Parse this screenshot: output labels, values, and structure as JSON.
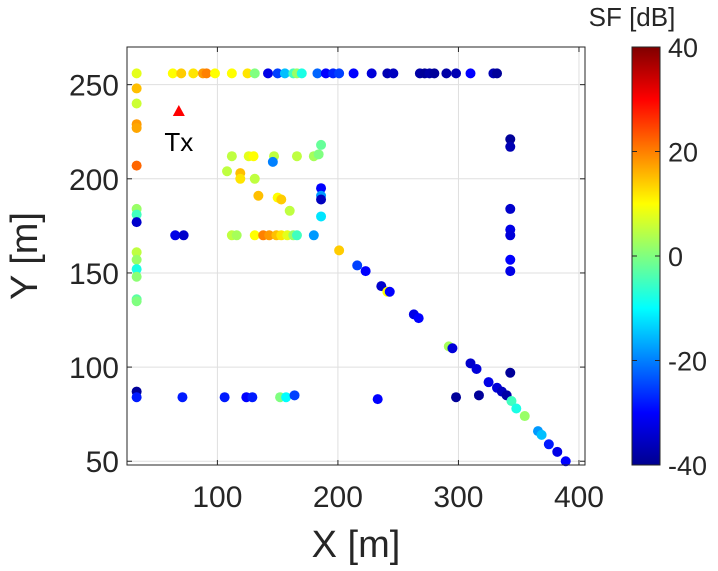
{
  "chart_data": {
    "type": "scatter",
    "title": "",
    "xlabel": "X [m]",
    "ylabel": "Y [m]",
    "xlim": [
      25,
      405
    ],
    "ylim": [
      48,
      270
    ],
    "xticks": [
      100,
      200,
      300,
      400
    ],
    "yticks": [
      50,
      100,
      150,
      200,
      250
    ],
    "grid": true,
    "colorbar": {
      "label": "SF [dB]",
      "colormap": "jet",
      "range": [
        -40,
        40
      ],
      "ticks": [
        -40,
        -20,
        0,
        20,
        40
      ]
    },
    "annotations": [
      {
        "text": "Tx",
        "x": 68,
        "y": 236,
        "marker": "triangle",
        "color": "#ff0000"
      }
    ],
    "points": [
      {
        "x": 33,
        "y": 256,
        "sf": 8
      },
      {
        "x": 33,
        "y": 248,
        "sf": 15
      },
      {
        "x": 33,
        "y": 240,
        "sf": 6
      },
      {
        "x": 33,
        "y": 229,
        "sf": 18
      },
      {
        "x": 33,
        "y": 227,
        "sf": 17
      },
      {
        "x": 33,
        "y": 207,
        "sf": 22
      },
      {
        "x": 33,
        "y": 184,
        "sf": 2
      },
      {
        "x": 33,
        "y": 181,
        "sf": -5
      },
      {
        "x": 33,
        "y": 177,
        "sf": -34
      },
      {
        "x": 33,
        "y": 161,
        "sf": 5
      },
      {
        "x": 33,
        "y": 157,
        "sf": 2
      },
      {
        "x": 33,
        "y": 152,
        "sf": -8
      },
      {
        "x": 33,
        "y": 148,
        "sf": 1
      },
      {
        "x": 33,
        "y": 136,
        "sf": -3
      },
      {
        "x": 33,
        "y": 135,
        "sf": 0
      },
      {
        "x": 33,
        "y": 87,
        "sf": -38
      },
      {
        "x": 33,
        "y": 84,
        "sf": -28
      },
      {
        "x": 63,
        "y": 256,
        "sf": 10
      },
      {
        "x": 70,
        "y": 256,
        "sf": 14
      },
      {
        "x": 80,
        "y": 256,
        "sf": 12
      },
      {
        "x": 88,
        "y": 256,
        "sf": 18
      },
      {
        "x": 91,
        "y": 256,
        "sf": 20
      },
      {
        "x": 98,
        "y": 256,
        "sf": 10
      },
      {
        "x": 112,
        "y": 256,
        "sf": 10
      },
      {
        "x": 125,
        "y": 256,
        "sf": 12
      },
      {
        "x": 131,
        "y": 256,
        "sf": 0
      },
      {
        "x": 142,
        "y": 256,
        "sf": -32
      },
      {
        "x": 150,
        "y": 256,
        "sf": -25
      },
      {
        "x": 156,
        "y": 256,
        "sf": -15
      },
      {
        "x": 163,
        "y": 256,
        "sf": -5
      },
      {
        "x": 166,
        "y": 256,
        "sf": 2
      },
      {
        "x": 170,
        "y": 256,
        "sf": -8
      },
      {
        "x": 183,
        "y": 256,
        "sf": -22
      },
      {
        "x": 190,
        "y": 256,
        "sf": -30
      },
      {
        "x": 196,
        "y": 256,
        "sf": -27
      },
      {
        "x": 201,
        "y": 256,
        "sf": -25
      },
      {
        "x": 213,
        "y": 256,
        "sf": -30
      },
      {
        "x": 228,
        "y": 256,
        "sf": -33
      },
      {
        "x": 241,
        "y": 256,
        "sf": -36
      },
      {
        "x": 246,
        "y": 256,
        "sf": -35
      },
      {
        "x": 268,
        "y": 256,
        "sf": -37
      },
      {
        "x": 272,
        "y": 256,
        "sf": -38
      },
      {
        "x": 276,
        "y": 256,
        "sf": -37
      },
      {
        "x": 280,
        "y": 256,
        "sf": -38
      },
      {
        "x": 290,
        "y": 256,
        "sf": -37
      },
      {
        "x": 298,
        "y": 256,
        "sf": -36
      },
      {
        "x": 310,
        "y": 256,
        "sf": -30
      },
      {
        "x": 329,
        "y": 256,
        "sf": -36
      },
      {
        "x": 332,
        "y": 256,
        "sf": -38
      },
      {
        "x": 65,
        "y": 170,
        "sf": -32
      },
      {
        "x": 72,
        "y": 170,
        "sf": -34
      },
      {
        "x": 108,
        "y": 204,
        "sf": 5
      },
      {
        "x": 112,
        "y": 212,
        "sf": 5
      },
      {
        "x": 119,
        "y": 203,
        "sf": 15
      },
      {
        "x": 119,
        "y": 200,
        "sf": 12
      },
      {
        "x": 126,
        "y": 212,
        "sf": 8
      },
      {
        "x": 130,
        "y": 212,
        "sf": 10
      },
      {
        "x": 131,
        "y": 200,
        "sf": 5
      },
      {
        "x": 134,
        "y": 191,
        "sf": 15
      },
      {
        "x": 147,
        "y": 212,
        "sf": 5
      },
      {
        "x": 146,
        "y": 209,
        "sf": -20
      },
      {
        "x": 150,
        "y": 190,
        "sf": 10
      },
      {
        "x": 153,
        "y": 189,
        "sf": 14
      },
      {
        "x": 160,
        "y": 183,
        "sf": 5
      },
      {
        "x": 166,
        "y": 212,
        "sf": 5
      },
      {
        "x": 180,
        "y": 212,
        "sf": 3
      },
      {
        "x": 184,
        "y": 213,
        "sf": 0
      },
      {
        "x": 186,
        "y": 218,
        "sf": -2
      },
      {
        "x": 186,
        "y": 195,
        "sf": -30
      },
      {
        "x": 186,
        "y": 191,
        "sf": -18
      },
      {
        "x": 186,
        "y": 189,
        "sf": -35
      },
      {
        "x": 186,
        "y": 180,
        "sf": -12
      },
      {
        "x": 112,
        "y": 170,
        "sf": 5
      },
      {
        "x": 116,
        "y": 170,
        "sf": 3
      },
      {
        "x": 131,
        "y": 170,
        "sf": 10
      },
      {
        "x": 138,
        "y": 170,
        "sf": 20
      },
      {
        "x": 143,
        "y": 170,
        "sf": 18
      },
      {
        "x": 149,
        "y": 170,
        "sf": 15
      },
      {
        "x": 153,
        "y": 170,
        "sf": 12
      },
      {
        "x": 158,
        "y": 170,
        "sf": 8
      },
      {
        "x": 163,
        "y": 170,
        "sf": 2
      },
      {
        "x": 166,
        "y": 170,
        "sf": -5
      },
      {
        "x": 180,
        "y": 170,
        "sf": -18
      },
      {
        "x": 201,
        "y": 162,
        "sf": 14
      },
      {
        "x": 216,
        "y": 154,
        "sf": -25
      },
      {
        "x": 223,
        "y": 151,
        "sf": -30
      },
      {
        "x": 236,
        "y": 143,
        "sf": -34
      },
      {
        "x": 241,
        "y": 140,
        "sf": 10
      },
      {
        "x": 243,
        "y": 140,
        "sf": -30
      },
      {
        "x": 263,
        "y": 128,
        "sf": -32
      },
      {
        "x": 267,
        "y": 126,
        "sf": -30
      },
      {
        "x": 292,
        "y": 111,
        "sf": 3
      },
      {
        "x": 295,
        "y": 110,
        "sf": -33
      },
      {
        "x": 310,
        "y": 102,
        "sf": -34
      },
      {
        "x": 315,
        "y": 99,
        "sf": -33
      },
      {
        "x": 325,
        "y": 92,
        "sf": -32
      },
      {
        "x": 332,
        "y": 89,
        "sf": -33
      },
      {
        "x": 336,
        "y": 87,
        "sf": -35
      },
      {
        "x": 340,
        "y": 85,
        "sf": -37
      },
      {
        "x": 344,
        "y": 82,
        "sf": -5
      },
      {
        "x": 348,
        "y": 78,
        "sf": -8
      },
      {
        "x": 355,
        "y": 74,
        "sf": 2
      },
      {
        "x": 366,
        "y": 66,
        "sf": -18
      },
      {
        "x": 369,
        "y": 64,
        "sf": -15
      },
      {
        "x": 375,
        "y": 59,
        "sf": -28
      },
      {
        "x": 382,
        "y": 55,
        "sf": -32
      },
      {
        "x": 389,
        "y": 50,
        "sf": -30
      },
      {
        "x": 343,
        "y": 221,
        "sf": -38
      },
      {
        "x": 343,
        "y": 217,
        "sf": -36
      },
      {
        "x": 343,
        "y": 184,
        "sf": -34
      },
      {
        "x": 343,
        "y": 173,
        "sf": -32
      },
      {
        "x": 343,
        "y": 170,
        "sf": -33
      },
      {
        "x": 343,
        "y": 157,
        "sf": -30
      },
      {
        "x": 343,
        "y": 151,
        "sf": -32
      },
      {
        "x": 343,
        "y": 97,
        "sf": -38
      },
      {
        "x": 71,
        "y": 84,
        "sf": -28
      },
      {
        "x": 106,
        "y": 84,
        "sf": -28
      },
      {
        "x": 124,
        "y": 84,
        "sf": -30
      },
      {
        "x": 129,
        "y": 84,
        "sf": -28
      },
      {
        "x": 152,
        "y": 84,
        "sf": 0
      },
      {
        "x": 157,
        "y": 84,
        "sf": -10
      },
      {
        "x": 164,
        "y": 85,
        "sf": -25
      },
      {
        "x": 233,
        "y": 83,
        "sf": -30
      },
      {
        "x": 298,
        "y": 84,
        "sf": -38
      },
      {
        "x": 317,
        "y": 85,
        "sf": -38
      }
    ]
  }
}
